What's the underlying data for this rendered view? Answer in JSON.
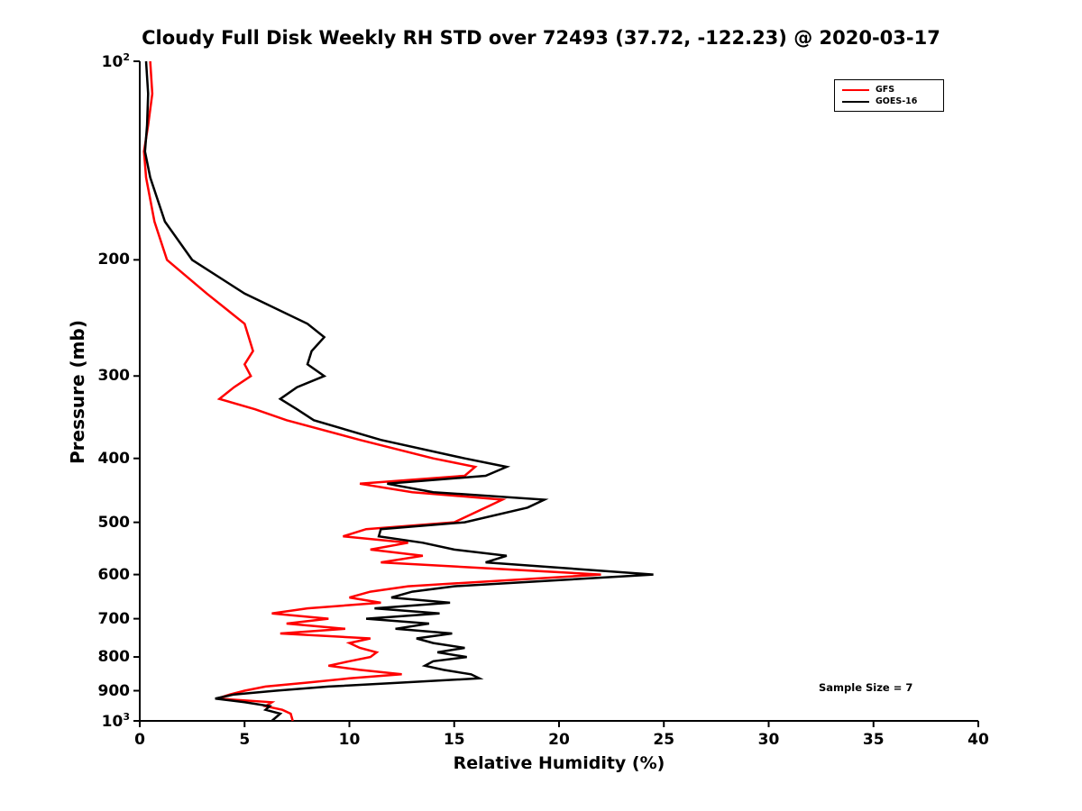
{
  "chart_data": {
    "type": "line",
    "title": "Cloudy Full Disk Weekly RH STD over 72493 (37.72, -122.23) @ 2020-03-17",
    "xlabel": "Relative Humidity (%)",
    "ylabel": "Pressure (mb)",
    "annotation": "Sample Size = 7",
    "xlim": [
      0,
      40
    ],
    "ylim": [
      100,
      1000
    ],
    "y_scale": "log",
    "y_inverted": true,
    "grid": false,
    "legend_position": "top-right",
    "x_ticks": [
      "0",
      "5",
      "10",
      "15",
      "20",
      "25",
      "30",
      "35",
      "40"
    ],
    "x_tick_values": [
      0,
      5,
      10,
      15,
      20,
      25,
      30,
      35,
      40
    ],
    "y_ticks": [
      {
        "value": 100,
        "label": "10^2"
      },
      {
        "value": 200,
        "label": "200"
      },
      {
        "value": 300,
        "label": "300"
      },
      {
        "value": 400,
        "label": "400"
      },
      {
        "value": 500,
        "label": "500"
      },
      {
        "value": 600,
        "label": "600"
      },
      {
        "value": 700,
        "label": "700"
      },
      {
        "value": 800,
        "label": "800"
      },
      {
        "value": 900,
        "label": "900"
      },
      {
        "value": 1000,
        "label": "10^3"
      }
    ],
    "pressure_levels": [
      100,
      112,
      125,
      137,
      150,
      175,
      200,
      225,
      250,
      262,
      275,
      288,
      300,
      312,
      325,
      337,
      350,
      375,
      400,
      412,
      425,
      437,
      450,
      462,
      475,
      500,
      512,
      525,
      537,
      550,
      562,
      575,
      600,
      625,
      637,
      650,
      662,
      675,
      687,
      700,
      712,
      725,
      737,
      750,
      762,
      775,
      787,
      800,
      812,
      825,
      837,
      850,
      862,
      875,
      887,
      900,
      912,
      925,
      937,
      950,
      962,
      975,
      1000
    ],
    "series": [
      {
        "name": "GFS",
        "color": "#FF0000",
        "values": [
          0.5,
          0.6,
          0.4,
          0.2,
          0.3,
          0.7,
          1.3,
          3.2,
          5.0,
          5.2,
          5.4,
          5.0,
          5.3,
          4.5,
          3.8,
          5.5,
          7.0,
          10.5,
          14.0,
          16.0,
          15.5,
          10.5,
          13.0,
          17.3,
          16.5,
          15.0,
          10.8,
          9.7,
          12.8,
          11.0,
          13.5,
          11.5,
          22.0,
          12.8,
          11.0,
          10.0,
          11.5,
          8.0,
          6.3,
          9.0,
          7.0,
          9.8,
          6.7,
          11.0,
          10.0,
          10.5,
          11.3,
          11.0,
          10.0,
          9.0,
          10.5,
          12.5,
          10.0,
          8.0,
          6.0,
          5.0,
          4.3,
          3.7,
          6.3,
          6.0,
          6.8,
          7.2,
          7.3
        ]
      },
      {
        "name": "GOES-16",
        "color": "#000000",
        "values": [
          0.3,
          0.4,
          0.35,
          0.25,
          0.5,
          1.2,
          2.5,
          5.0,
          8.0,
          8.8,
          8.2,
          8.0,
          8.8,
          7.5,
          6.7,
          7.5,
          8.3,
          11.5,
          15.5,
          17.5,
          16.5,
          11.8,
          14.0,
          19.3,
          18.5,
          15.5,
          11.5,
          11.4,
          13.5,
          15.0,
          17.5,
          16.5,
          24.5,
          15.0,
          13.0,
          12.0,
          14.8,
          11.2,
          14.3,
          10.8,
          13.8,
          12.2,
          14.9,
          13.2,
          14.0,
          15.5,
          14.2,
          15.6,
          14.0,
          13.6,
          14.5,
          15.8,
          16.2,
          12.5,
          9.0,
          6.5,
          4.5,
          3.6,
          5.0,
          6.2,
          6.0,
          6.7,
          6.3
        ]
      }
    ],
    "axis_color": "#000000"
  }
}
